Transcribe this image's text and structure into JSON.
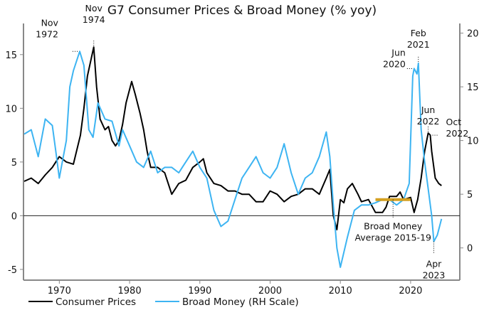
{
  "chart_data": {
    "type": "line",
    "title": "G7 Consumer Prices & Broad Money (% yoy)",
    "xlim": [
      1964.9,
      2027
    ],
    "ylim_left": [
      -6,
      17.9
    ],
    "ylim_right": [
      -3,
      20.9
    ],
    "x_ticks": [
      1970,
      1980,
      1990,
      2000,
      2010,
      2020
    ],
    "y_ticks_left": [
      -5,
      0,
      5,
      10,
      15
    ],
    "y_ticks_right": [
      0,
      5,
      10,
      15,
      20
    ],
    "legend": {
      "position": "bottom",
      "entries": [
        "Consumer Prices",
        "Broad Money (RH Scale)"
      ]
    },
    "series": [
      {
        "name": "Consumer Prices",
        "axis": "left",
        "color": "#000000",
        "x": [
          1965,
          1966,
          1967,
          1968,
          1969,
          1970,
          1971,
          1972,
          1973,
          1973.5,
          1974,
          1974.9,
          1975.3,
          1975.8,
          1976.5,
          1977,
          1977.5,
          1978,
          1978.5,
          1979,
          1979.5,
          1980.3,
          1980.8,
          1981.5,
          1982,
          1982.5,
          1983,
          1984,
          1985,
          1986,
          1987,
          1988,
          1989,
          1990,
          1990.5,
          1991,
          1992,
          1993,
          1994,
          1995,
          1996,
          1997,
          1998,
          1999,
          2000,
          2001,
          2002,
          2003,
          2004,
          2005,
          2006,
          2007,
          2008,
          2008.5,
          2009,
          2009.5,
          2010,
          2010.5,
          2011,
          2011.7,
          2012.5,
          2013,
          2014,
          2015,
          2016,
          2016.5,
          2017,
          2018,
          2018.5,
          2019,
          2020,
          2020.5,
          2021,
          2021.5,
          2022,
          2022.5,
          2022.8,
          2023,
          2023.5,
          2024,
          2024.4
        ],
        "y": [
          3.2,
          3.5,
          3.0,
          3.8,
          4.5,
          5.5,
          5.0,
          4.8,
          7.5,
          10,
          13,
          15.7,
          12,
          9,
          8,
          8.3,
          7,
          6.5,
          7,
          8.5,
          10.5,
          12.5,
          11.3,
          9.5,
          8,
          6,
          4.5,
          4.5,
          4,
          2,
          3,
          3.3,
          4.5,
          5,
          5.3,
          4,
          3,
          2.8,
          2.3,
          2.3,
          2,
          2,
          1.3,
          1.3,
          2.3,
          2,
          1.3,
          1.8,
          2,
          2.5,
          2.5,
          2,
          3.5,
          4.3,
          0,
          -1.3,
          1.5,
          1.2,
          2.5,
          3,
          2,
          1.3,
          1.5,
          0.3,
          0.3,
          0.8,
          1.8,
          1.8,
          2.2,
          1.5,
          1.7,
          0.3,
          1.5,
          3.5,
          6,
          7.7,
          7.5,
          6,
          3.5,
          3,
          2.8
        ]
      },
      {
        "name": "Broad Money (RH Scale)",
        "axis": "right",
        "color": "#3db4f2",
        "x": [
          1965,
          1966,
          1967,
          1968,
          1969,
          1969.5,
          1970,
          1971,
          1971.5,
          1972,
          1972.9,
          1973.5,
          1974.2,
          1974.8,
          1975.5,
          1976.5,
          1977.5,
          1978.5,
          1979,
          1980,
          1981,
          1982,
          1983,
          1984,
          1985,
          1986,
          1987,
          1988,
          1989,
          1990,
          1991,
          1992,
          1993,
          1994,
          1995,
          1996,
          1997,
          1998,
          1999,
          2000,
          2001,
          2002,
          2003,
          2004,
          2005,
          2006,
          2007,
          2008,
          2008.5,
          2009,
          2009.5,
          2010,
          2011,
          2012,
          2013,
          2014,
          2015,
          2016,
          2017,
          2018,
          2019,
          2019.8,
          2020.3,
          2020.5,
          2020.9,
          2021.1,
          2021.5,
          2022,
          2022.5,
          2023,
          2023.3,
          2023.8,
          2024.4
        ],
        "y": [
          10.6,
          11,
          8.5,
          12,
          11.4,
          9,
          6.5,
          10,
          15,
          16.5,
          18.3,
          17,
          11,
          10.3,
          13.5,
          12,
          11.8,
          9.5,
          11,
          9.5,
          8,
          7.5,
          9,
          7,
          7.5,
          7.5,
          7,
          8,
          9,
          7.5,
          6.5,
          3.5,
          2,
          2.5,
          4.5,
          6.5,
          7.5,
          8.5,
          7,
          6.5,
          7.5,
          9.7,
          7,
          5,
          6.5,
          7,
          8.5,
          10.8,
          8.5,
          4,
          0,
          -1.8,
          1,
          3.5,
          4,
          4,
          4.2,
          4.5,
          4.5,
          4,
          4.5,
          6,
          16,
          16.7,
          16.2,
          17.2,
          11,
          8,
          5.5,
          3,
          0.6,
          1.2,
          2.7
        ]
      },
      {
        "name": "Broad Money Average 2015-19",
        "axis": "right",
        "color": "#d4a020",
        "x": [
          2015,
          2020
        ],
        "y": [
          4.5,
          4.5
        ]
      }
    ],
    "annotations": [
      {
        "text": [
          "Nov",
          "1972"
        ],
        "x": 1972.9,
        "y": 18.3,
        "axis": "right"
      },
      {
        "text": [
          "Nov",
          "1974"
        ],
        "x": 1974.9,
        "y": 15.7,
        "axis": "left"
      },
      {
        "text": [
          "Jun",
          "2020"
        ],
        "x": 2020.5,
        "y": 16.7,
        "axis": "right"
      },
      {
        "text": [
          "Feb",
          "2021"
        ],
        "x": 2021.1,
        "y": 17.2,
        "axis": "right"
      },
      {
        "text": [
          "Jun",
          "2022"
        ],
        "x": 2022.5,
        "y": 7.7,
        "axis": "left"
      },
      {
        "text": [
          "Oct",
          "2022"
        ],
        "x": 2022.8,
        "y": 7.5,
        "axis": "left"
      },
      {
        "text": [
          "Broad Money",
          "Average 2015-19"
        ],
        "x": 2017.5,
        "y": 4.5,
        "axis": "right"
      },
      {
        "text": [
          "Apr",
          "2023"
        ],
        "x": 2023.3,
        "y": 0.6,
        "axis": "right"
      }
    ]
  }
}
